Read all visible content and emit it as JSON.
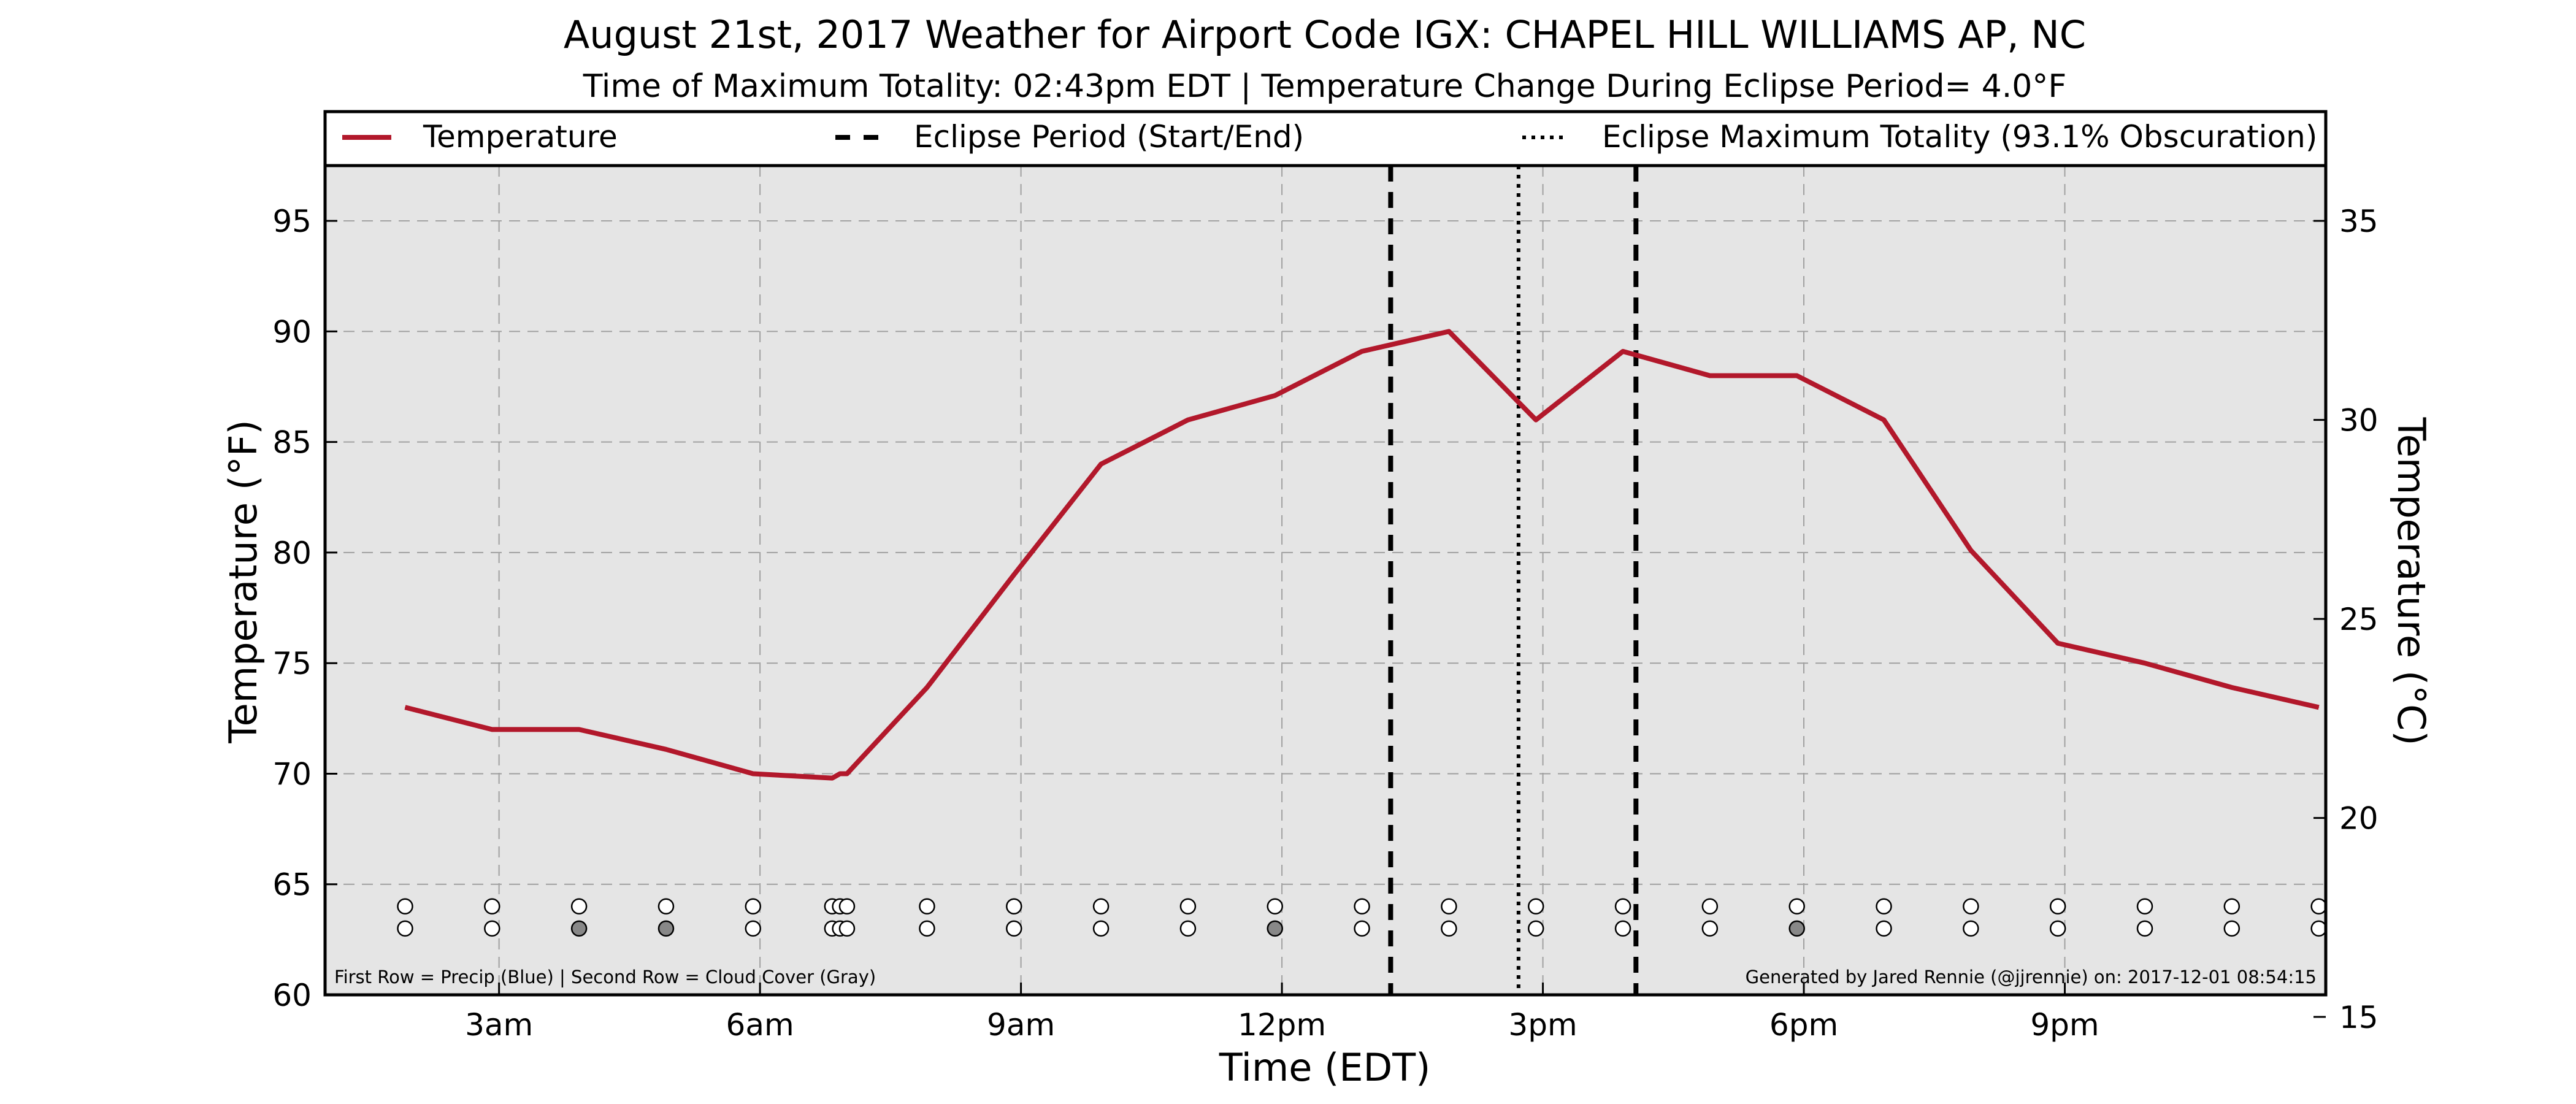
{
  "colors": {
    "plot_bg": "#e5e5e5",
    "temperature_line": "#b2182b",
    "grid": "#a0a0a0",
    "cloud_fill": "#888888",
    "obs_fill": "#ffffff"
  },
  "chart_data": {
    "type": "line",
    "title": "August 21st, 2017 Weather for Airport Code IGX: CHAPEL HILL WILLIAMS AP, NC",
    "subtitle": "Time of Maximum Totality: 02:43pm EDT | Temperature Change During Eclipse Period= 4.0°F",
    "xlabel": "Time (EDT)",
    "ylabel_left": "Temperature (°F)",
    "ylabel_right": "Temperature (°C)",
    "x_unit": "hours since midnight EDT",
    "xlim": [
      1.0,
      24.0
    ],
    "ylim": [
      60,
      97.5
    ],
    "ylim_right_celsius": [
      15.56,
      36.39
    ],
    "x_ticks": [
      {
        "value": 3,
        "label": "3am"
      },
      {
        "value": 6,
        "label": "6am"
      },
      {
        "value": 9,
        "label": "9am"
      },
      {
        "value": 12,
        "label": "12pm"
      },
      {
        "value": 15,
        "label": "3pm"
      },
      {
        "value": 18,
        "label": "6pm"
      },
      {
        "value": 21,
        "label": "9pm"
      }
    ],
    "y_ticks_left": [
      {
        "value": 60,
        "label": "60"
      },
      {
        "value": 65,
        "label": "65"
      },
      {
        "value": 70,
        "label": "70"
      },
      {
        "value": 75,
        "label": "75"
      },
      {
        "value": 80,
        "label": "80"
      },
      {
        "value": 85,
        "label": "85"
      },
      {
        "value": 90,
        "label": "90"
      },
      {
        "value": 95,
        "label": "95"
      }
    ],
    "y_ticks_right": [
      {
        "value": 15,
        "label": "15"
      },
      {
        "value": 20,
        "label": "20"
      },
      {
        "value": 25,
        "label": "25"
      },
      {
        "value": 30,
        "label": "30"
      },
      {
        "value": 35,
        "label": "35"
      }
    ],
    "grid": true,
    "legend": {
      "placement": "top",
      "entries": [
        {
          "label": "Temperature",
          "style": "solid"
        },
        {
          "label": "Eclipse Period (Start/End)",
          "style": "dashed"
        },
        {
          "label": "Eclipse Maximum Totality (93.1% Obscuration)",
          "style": "dotted"
        }
      ]
    },
    "series": [
      {
        "name": "Temperature",
        "x": [
          1.92,
          2.92,
          3.92,
          4.92,
          5.92,
          6.83,
          6.92,
          7.0,
          7.92,
          8.92,
          9.92,
          10.92,
          11.92,
          12.92,
          13.92,
          14.92,
          15.92,
          16.92,
          17.92,
          18.92,
          19.92,
          20.92,
          21.92,
          22.92,
          23.92
        ],
        "y": [
          73,
          72,
          72,
          71.1,
          70,
          69.8,
          70,
          70,
          73.9,
          79.0,
          84.0,
          86.0,
          87.1,
          89.1,
          90.0,
          86.0,
          89.1,
          88.0,
          88.0,
          86.0,
          80.1,
          75.9,
          75.0,
          73.9,
          73.0
        ]
      }
    ],
    "eclipse_period": {
      "start": 13.25,
      "end": 16.07
    },
    "eclipse_max_totality": 14.72,
    "observation_rows": {
      "x": [
        1.92,
        2.92,
        3.92,
        4.92,
        5.92,
        6.83,
        6.92,
        7.0,
        7.92,
        8.92,
        9.92,
        10.92,
        11.92,
        12.92,
        13.92,
        14.92,
        15.92,
        16.92,
        17.92,
        18.92,
        19.92,
        20.92,
        21.92,
        22.92,
        23.92
      ],
      "precip": [
        0,
        0,
        0,
        0,
        0,
        0,
        0,
        0,
        0,
        0,
        0,
        0,
        0,
        0,
        0,
        0,
        0,
        0,
        0,
        0,
        0,
        0,
        0,
        0,
        0
      ],
      "cloud": [
        0,
        0,
        1,
        1,
        0,
        0,
        0,
        0,
        0,
        0,
        0,
        0,
        1,
        0,
        0,
        0,
        0,
        0,
        1,
        0,
        0,
        0,
        0,
        0,
        0
      ],
      "precip_y": 64,
      "cloud_y": 63
    },
    "footnote_left": "First Row = Precip (Blue) | Second Row = Cloud Cover (Gray)",
    "footnote_right": "Generated by Jared Rennie (@jjrennie) on: 2017-12-01 08:54:15"
  }
}
